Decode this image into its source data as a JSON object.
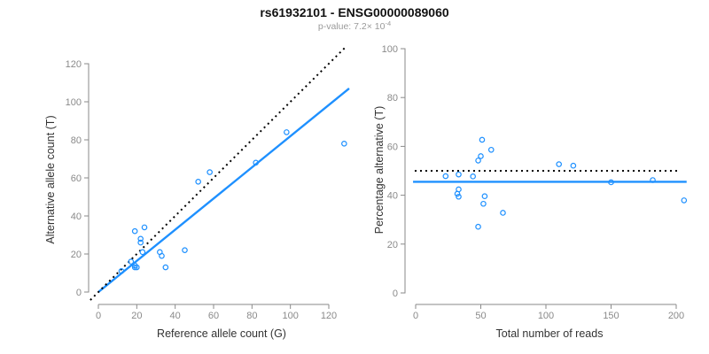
{
  "figure": {
    "title": "rs61932101 - ENSG00000089060",
    "subtitle_prefix": "p-value: 7.2× 10",
    "subtitle_exponent": "-4"
  },
  "colors": {
    "blue": "#1E90FF",
    "black": "#000000",
    "axis_gray": "#8a8a8a",
    "tick_label_gray": "#8a8a8a",
    "axis_title_color": "#333333",
    "title_color": "#111111",
    "subtitle_color": "#9a9a9a"
  },
  "chart_data": [
    {
      "type": "scatter",
      "panel": "left",
      "xlabel": "Reference allele count (G)",
      "ylabel": "Alternative allele count (T)",
      "xticks": [
        0,
        20,
        40,
        60,
        80,
        100,
        120
      ],
      "yticks": [
        0,
        20,
        40,
        60,
        80,
        100,
        120
      ],
      "xlim": [
        -5,
        133
      ],
      "ylim": [
        -5,
        133
      ],
      "grid": false,
      "points": [
        [
          12,
          11
        ],
        [
          17,
          16
        ],
        [
          19,
          13
        ],
        [
          19,
          14
        ],
        [
          20,
          13
        ],
        [
          19,
          32
        ],
        [
          22,
          26
        ],
        [
          22,
          28
        ],
        [
          23,
          21
        ],
        [
          24,
          34
        ],
        [
          32,
          21
        ],
        [
          33,
          19
        ],
        [
          35,
          13
        ],
        [
          45,
          22
        ],
        [
          52,
          58
        ],
        [
          58,
          63
        ],
        [
          82,
          68
        ],
        [
          98,
          84
        ],
        [
          128,
          78
        ]
      ],
      "lines": [
        {
          "name": "regression-line",
          "style": "solid",
          "color_key": "blue",
          "x1": 0,
          "y1": 0,
          "x2": 130.6,
          "y2": 107
        },
        {
          "name": "identity-line",
          "style": "dotted",
          "color_key": "black",
          "x1": -4.2,
          "y1": -4.2,
          "x2": 128.4,
          "y2": 128.4
        }
      ]
    },
    {
      "type": "scatter",
      "panel": "right",
      "xlabel": "Total number of reads",
      "ylabel": "Percentage alternative (T)",
      "xticks": [
        0,
        50,
        100,
        150,
        200
      ],
      "yticks": [
        0,
        20,
        40,
        60,
        80,
        100
      ],
      "xlim": [
        -8,
        214
      ],
      "ylim": [
        -4,
        104
      ],
      "grid": false,
      "points": [
        [
          23,
          47.8
        ],
        [
          33,
          48.5
        ],
        [
          32,
          40.6
        ],
        [
          33,
          39.4
        ],
        [
          33,
          42.4
        ],
        [
          44,
          47.7
        ],
        [
          48,
          54.2
        ],
        [
          48,
          27.1
        ],
        [
          50,
          56.0
        ],
        [
          51,
          62.7
        ],
        [
          53,
          39.6
        ],
        [
          52,
          36.5
        ],
        [
          58,
          58.6
        ],
        [
          67,
          32.8
        ],
        [
          110,
          52.7
        ],
        [
          121,
          52.1
        ],
        [
          150,
          45.3
        ],
        [
          182,
          46.2
        ],
        [
          206,
          37.9
        ]
      ],
      "lines": [
        {
          "name": "mean-percentage-line",
          "style": "solid",
          "color_key": "blue",
          "x1": -2,
          "y1": 45.5,
          "x2": 208,
          "y2": 45.5
        },
        {
          "name": "fifty-percent-line",
          "style": "dotted",
          "color_key": "black",
          "x1": -0.7,
          "y1": 50,
          "x2": 203,
          "y2": 50
        }
      ]
    }
  ]
}
